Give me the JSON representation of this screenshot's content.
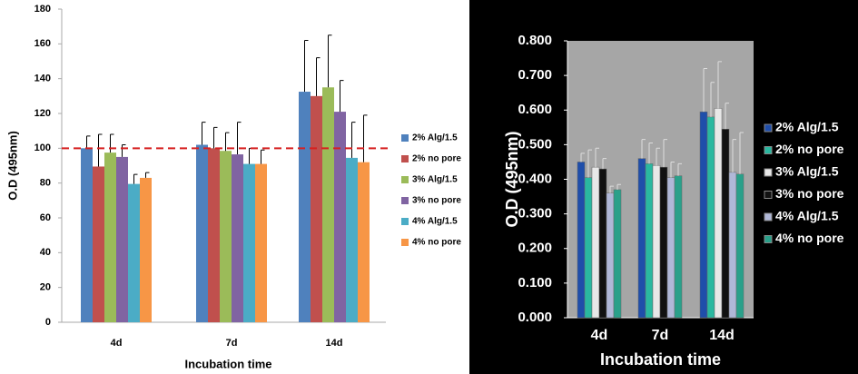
{
  "chart_data": [
    {
      "type": "bar",
      "categories": [
        "4d",
        "7d",
        "14d"
      ],
      "ylabel": "O.D (495nm)",
      "xlabel": "Incubation time",
      "ylim": [
        0,
        180
      ],
      "yticks": [
        0,
        20,
        40,
        60,
        80,
        100,
        120,
        140,
        160,
        180
      ],
      "reference_line": 100,
      "series": [
        {
          "name": "2% Alg/1.5",
          "color": "#4f81bd",
          "values": [
            100,
            102,
            132.5
          ],
          "errors": [
            7,
            13,
            29.5
          ]
        },
        {
          "name": "2% no pore",
          "color": "#c0504d",
          "values": [
            89.5,
            100,
            130
          ],
          "errors": [
            18.5,
            12,
            22
          ]
        },
        {
          "name": "3% Alg/1.5",
          "color": "#9bbb59",
          "values": [
            97.5,
            98.5,
            135
          ],
          "errors": [
            10.5,
            10.5,
            30
          ]
        },
        {
          "name": "3% no pore",
          "color": "#8064a2",
          "values": [
            95,
            96.5,
            121
          ],
          "errors": [
            7,
            18.5,
            18
          ]
        },
        {
          "name": "4% Alg/1.5",
          "color": "#4bacc6",
          "values": [
            79.5,
            91,
            94.5
          ],
          "errors": [
            5.5,
            9,
            20.5
          ]
        },
        {
          "name": "4% no pore",
          "color": "#f79646",
          "values": [
            83,
            91,
            92
          ],
          "errors": [
            3,
            8,
            27
          ]
        }
      ]
    },
    {
      "type": "bar",
      "categories": [
        "4d",
        "7d",
        "14d"
      ],
      "ylabel": "O.D (495nm)",
      "xlabel": "Incubation time",
      "ylim": [
        0,
        0.8
      ],
      "yticks": [
        {
          "value": 0,
          "label": "0.000"
        },
        {
          "value": 0.1,
          "label": "0.100"
        },
        {
          "value": 0.2,
          "label": "0.200"
        },
        {
          "value": 0.3,
          "label": "0.300"
        },
        {
          "value": 0.4,
          "label": "0.400"
        },
        {
          "value": 0.5,
          "label": "0.500"
        },
        {
          "value": 0.6,
          "label": "0.600"
        },
        {
          "value": 0.7,
          "label": "0.700"
        },
        {
          "value": 0.8,
          "label": "0.800"
        }
      ],
      "series": [
        {
          "name": "2% Alg/1.5",
          "color": "#1f4eaa",
          "values": [
            0.45,
            0.46,
            0.595
          ],
          "errors": [
            0.025,
            0.055,
            0.125
          ]
        },
        {
          "name": "2% no pore",
          "color": "#2ab8a0",
          "values": [
            0.405,
            0.445,
            0.58
          ],
          "errors": [
            0.08,
            0.06,
            0.1
          ]
        },
        {
          "name": "3% Alg/1.5",
          "color": "#e8e8e8",
          "values": [
            0.435,
            0.44,
            0.605
          ],
          "errors": [
            0.055,
            0.05,
            0.135
          ]
        },
        {
          "name": "3% no pore",
          "color": "#111111",
          "values": [
            0.43,
            0.435,
            0.545
          ],
          "errors": [
            0.03,
            0.08,
            0.075
          ]
        },
        {
          "name": "4% Alg/1.5",
          "color": "#b0b8d8",
          "values": [
            0.36,
            0.405,
            0.42
          ],
          "errors": [
            0.02,
            0.045,
            0.095
          ]
        },
        {
          "name": "4% no pore",
          "color": "#2aa08a",
          "values": [
            0.37,
            0.41,
            0.415
          ],
          "errors": [
            0.015,
            0.035,
            0.12
          ]
        }
      ]
    }
  ]
}
